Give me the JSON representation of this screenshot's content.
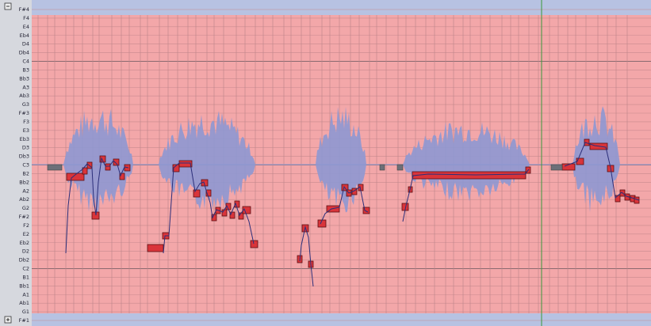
{
  "pitch_labels": [
    "F#4",
    "F4",
    "E4",
    "Eb4",
    "D4",
    "Db4",
    "C4",
    "B3",
    "Bb3",
    "A3",
    "Ab3",
    "G3",
    "F#3",
    "F3",
    "E3",
    "Eb3",
    "D3",
    "Db3",
    "C3",
    "B2",
    "Bb2",
    "A2",
    "Ab2",
    "G2",
    "F#2",
    "F2",
    "E2",
    "Eb2",
    "D2",
    "Db2",
    "C2",
    "B1",
    "Bb1",
    "A1",
    "Ab1",
    "G1",
    "F#1"
  ]
}
